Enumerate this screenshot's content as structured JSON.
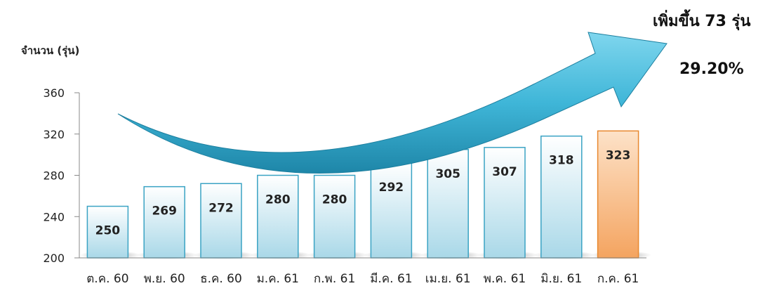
{
  "chart_data": {
    "type": "bar",
    "title": "",
    "ylabel": "จำนวน (รุ่น)",
    "xlabel": "",
    "categories": [
      "ต.ค. 60",
      "พ.ย. 60",
      "ธ.ค. 60",
      "ม.ค. 61",
      "ก.พ. 61",
      "มี.ค. 61",
      "เม.ย. 61",
      "พ.ค. 61",
      "มิ.ย. 61",
      "ก.ค.  61"
    ],
    "values": [
      250,
      269,
      272,
      280,
      280,
      292,
      305,
      307,
      318,
      323
    ],
    "ylim": [
      200,
      360
    ],
    "yticks": [
      200,
      240,
      280,
      320,
      360
    ],
    "grid": false,
    "highlight_index": 9,
    "colors": {
      "bar_fill_top": "#ffffff",
      "bar_fill_bottom": "#a9d8e8",
      "bar_stroke": "#3aa3c4",
      "highlight_fill_top": "#fde2c8",
      "highlight_fill_bottom": "#f4a460",
      "highlight_stroke": "#e8882e",
      "arrow": "#3fb6d8"
    },
    "annotations": {
      "increase_text": "เพิ่มขึ้น 73 รุ่น",
      "percent_text": "29.20%"
    }
  }
}
